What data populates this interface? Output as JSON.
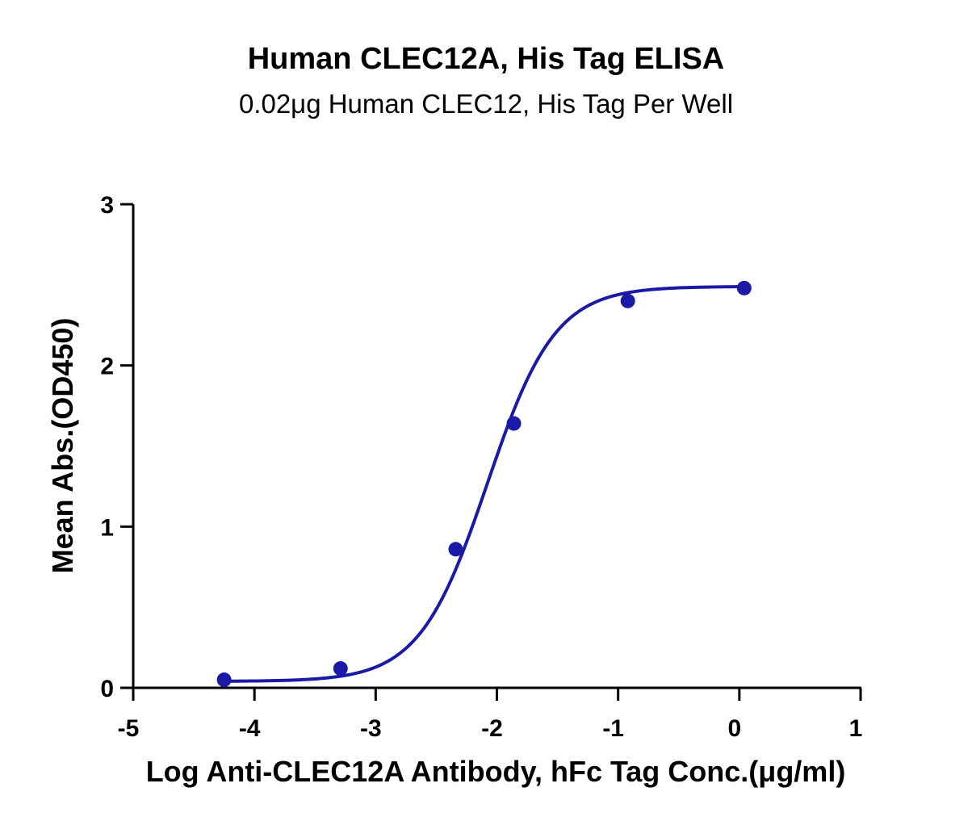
{
  "chart_data": {
    "type": "scatter",
    "title": "Human CLEC12A, His Tag ELISA",
    "subtitle": "0.02μg Human CLEC12, His Tag Per Well",
    "xlabel": "Log Anti-CLEC12A Antibody, hFc Tag Conc.(μg/ml)",
    "ylabel": "Mean Abs.(OD450)",
    "xlim": [
      -5,
      1
    ],
    "ylim": [
      0,
      3
    ],
    "x_ticks": [
      -5,
      -4,
      -3,
      -2,
      -1,
      0,
      1
    ],
    "y_ticks": [
      0,
      1,
      2,
      3
    ],
    "x_tick_labels": [
      "-5",
      "-4",
      "-3",
      "-2",
      "-1",
      "0",
      "1"
    ],
    "y_tick_labels": [
      "0",
      "1",
      "2",
      "3"
    ],
    "grid": false,
    "series": [
      {
        "x": [
          -4.25,
          -3.29,
          -2.34,
          -1.86,
          -0.92,
          0.04
        ],
        "y": [
          0.05,
          0.12,
          0.86,
          1.64,
          2.4,
          2.48
        ],
        "color": "#1a1aa6",
        "fit": "four-parameter logistic sigmoid"
      }
    ],
    "fit_params": {
      "bottom": 0.04,
      "top": 2.49,
      "log_ec50": -2.08,
      "hill_slope": 1.55
    }
  }
}
